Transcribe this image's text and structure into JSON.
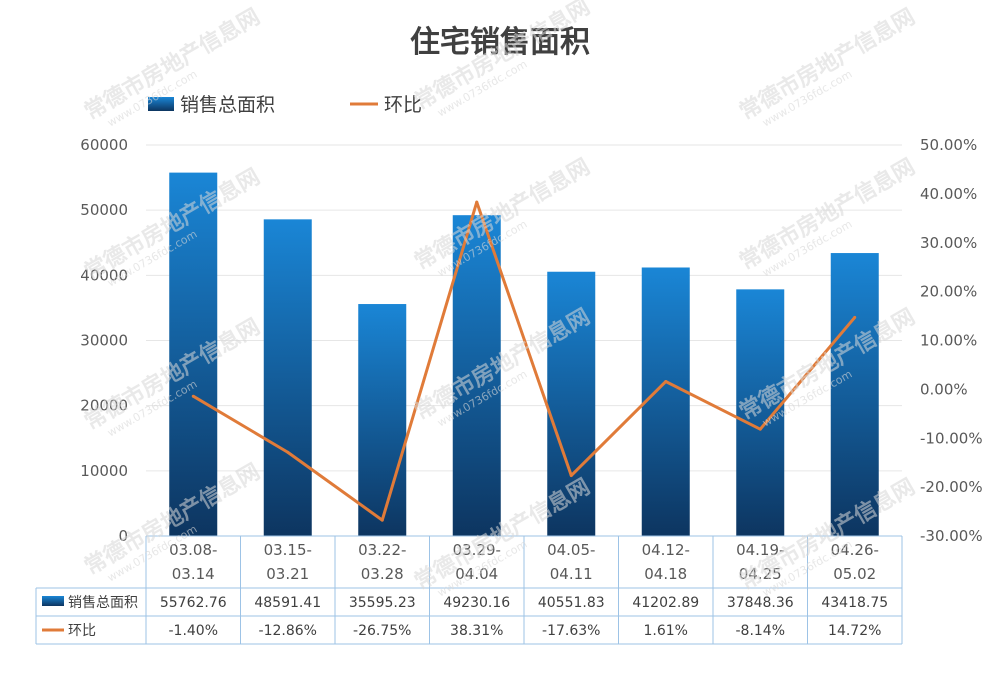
{
  "chart_data": {
    "type": "bar",
    "title": "住宅销售面积",
    "categories": [
      [
        "03.08-",
        "03.14"
      ],
      [
        "03.15-",
        "03.21"
      ],
      [
        "03.22-",
        "03.28"
      ],
      [
        "03.29-",
        "04.04"
      ],
      [
        "04.05-",
        "04.11"
      ],
      [
        "04.12-",
        "04.18"
      ],
      [
        "04.19-",
        "04.25"
      ],
      [
        "04.26-",
        "05.02"
      ]
    ],
    "series": [
      {
        "name": "销售总面积",
        "type": "bar",
        "axis": "left",
        "color": "#1f6fb5",
        "values": [
          55762.76,
          48591.41,
          35595.23,
          49230.16,
          40551.83,
          41202.89,
          37848.36,
          43418.75
        ],
        "labels": [
          "55762.76",
          "48591.41",
          "35595.23",
          "49230.16",
          "40551.83",
          "41202.89",
          "37848.36",
          "43418.75"
        ]
      },
      {
        "name": "环比",
        "type": "line",
        "axis": "right",
        "color": "#e07b39",
        "values": [
          -1.4,
          -12.86,
          -26.75,
          38.31,
          -17.63,
          1.61,
          -8.14,
          14.72
        ],
        "labels": [
          "-1.40%",
          "-12.86%",
          "-26.75%",
          "38.31%",
          "-17.63%",
          "1.61%",
          "-8.14%",
          "14.72%"
        ]
      }
    ],
    "y_left": {
      "range": [
        0,
        60000
      ],
      "ticks": [
        "0",
        "10000",
        "20000",
        "30000",
        "40000",
        "50000",
        "60000"
      ]
    },
    "y_right": {
      "range": [
        -30,
        50
      ],
      "ticks": [
        "-30.00%",
        "-20.00%",
        "-10.00%",
        "0.00%",
        "10.00%",
        "20.00%",
        "30.00%",
        "40.00%",
        "50.00%"
      ]
    },
    "legend_position": "top-left",
    "grid": true,
    "data_table": true
  },
  "watermark": {
    "name": "常德市房地产信息网",
    "url": "www.0736fdc.com"
  }
}
